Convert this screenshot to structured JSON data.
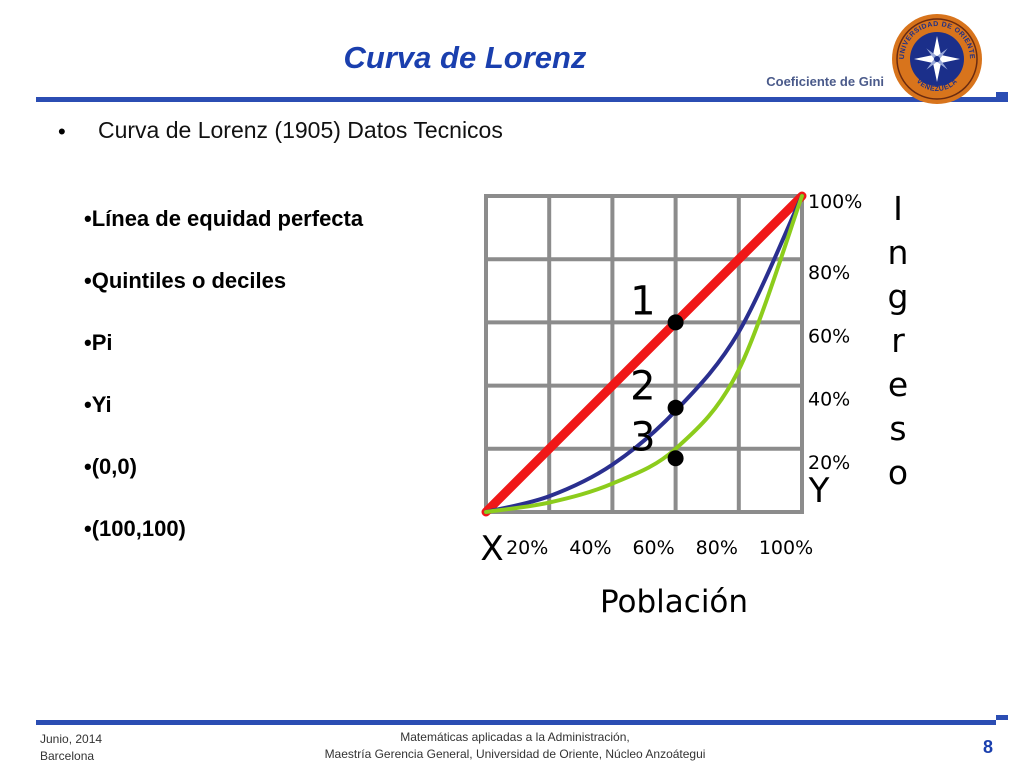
{
  "header": {
    "title": "Curva de Lorenz",
    "subtitle": "Coeficiente de Gini"
  },
  "content": {
    "main_bullet": "Curva de Lorenz (1905) Datos Tecnicos",
    "items": [
      "•Línea de equidad perfecta",
      "•Quintiles o deciles",
      "•Pi",
      "•Yi",
      "•(0,0)",
      "•(100,100)"
    ]
  },
  "logo": {
    "text_top": "UNIVERSIDAD DE ORIENTE",
    "text_bottom": "VENEZUELA",
    "colors": {
      "ring": "#d8741c",
      "disc": "#1b2f8a",
      "star": "#ffffff"
    }
  },
  "footer": {
    "date": "Junio, 2014",
    "city": "Barcelona",
    "line1": "Matemáticas aplicadas a la Administración,",
    "line2": "Maestría Gerencia General, Universidad de Oriente, Núcleo Anzoátegui",
    "page": "8"
  },
  "chart_data": {
    "type": "line",
    "xlabel": "Población",
    "ylabel": "Ingreso",
    "x_ticks": [
      "20%",
      "40%",
      "60%",
      "80%",
      "100%"
    ],
    "y_ticks": [
      "20%",
      "40%",
      "60%",
      "80%",
      "100%"
    ],
    "x_axis_name": "X",
    "y_axis_name": "Y",
    "xlim": [
      0,
      100
    ],
    "ylim": [
      0,
      100
    ],
    "grid": true,
    "series": [
      {
        "color": "#f01818",
        "x": [
          0,
          100
        ],
        "y": [
          0,
          100
        ]
      },
      {
        "color": "#2a2f8f",
        "x": [
          0,
          20,
          40,
          60,
          80,
          100
        ],
        "y": [
          0,
          5,
          15,
          32,
          57,
          100
        ]
      },
      {
        "color": "#8ccc1c",
        "x": [
          0,
          20,
          40,
          60,
          80,
          100
        ],
        "y": [
          0,
          3,
          9,
          20,
          45,
          100
        ]
      }
    ],
    "points": [
      {
        "label": "1",
        "x": 60,
        "y": 60
      },
      {
        "label": "2",
        "x": 60,
        "y": 33
      },
      {
        "label": "3",
        "x": 60,
        "y": 17
      }
    ]
  }
}
